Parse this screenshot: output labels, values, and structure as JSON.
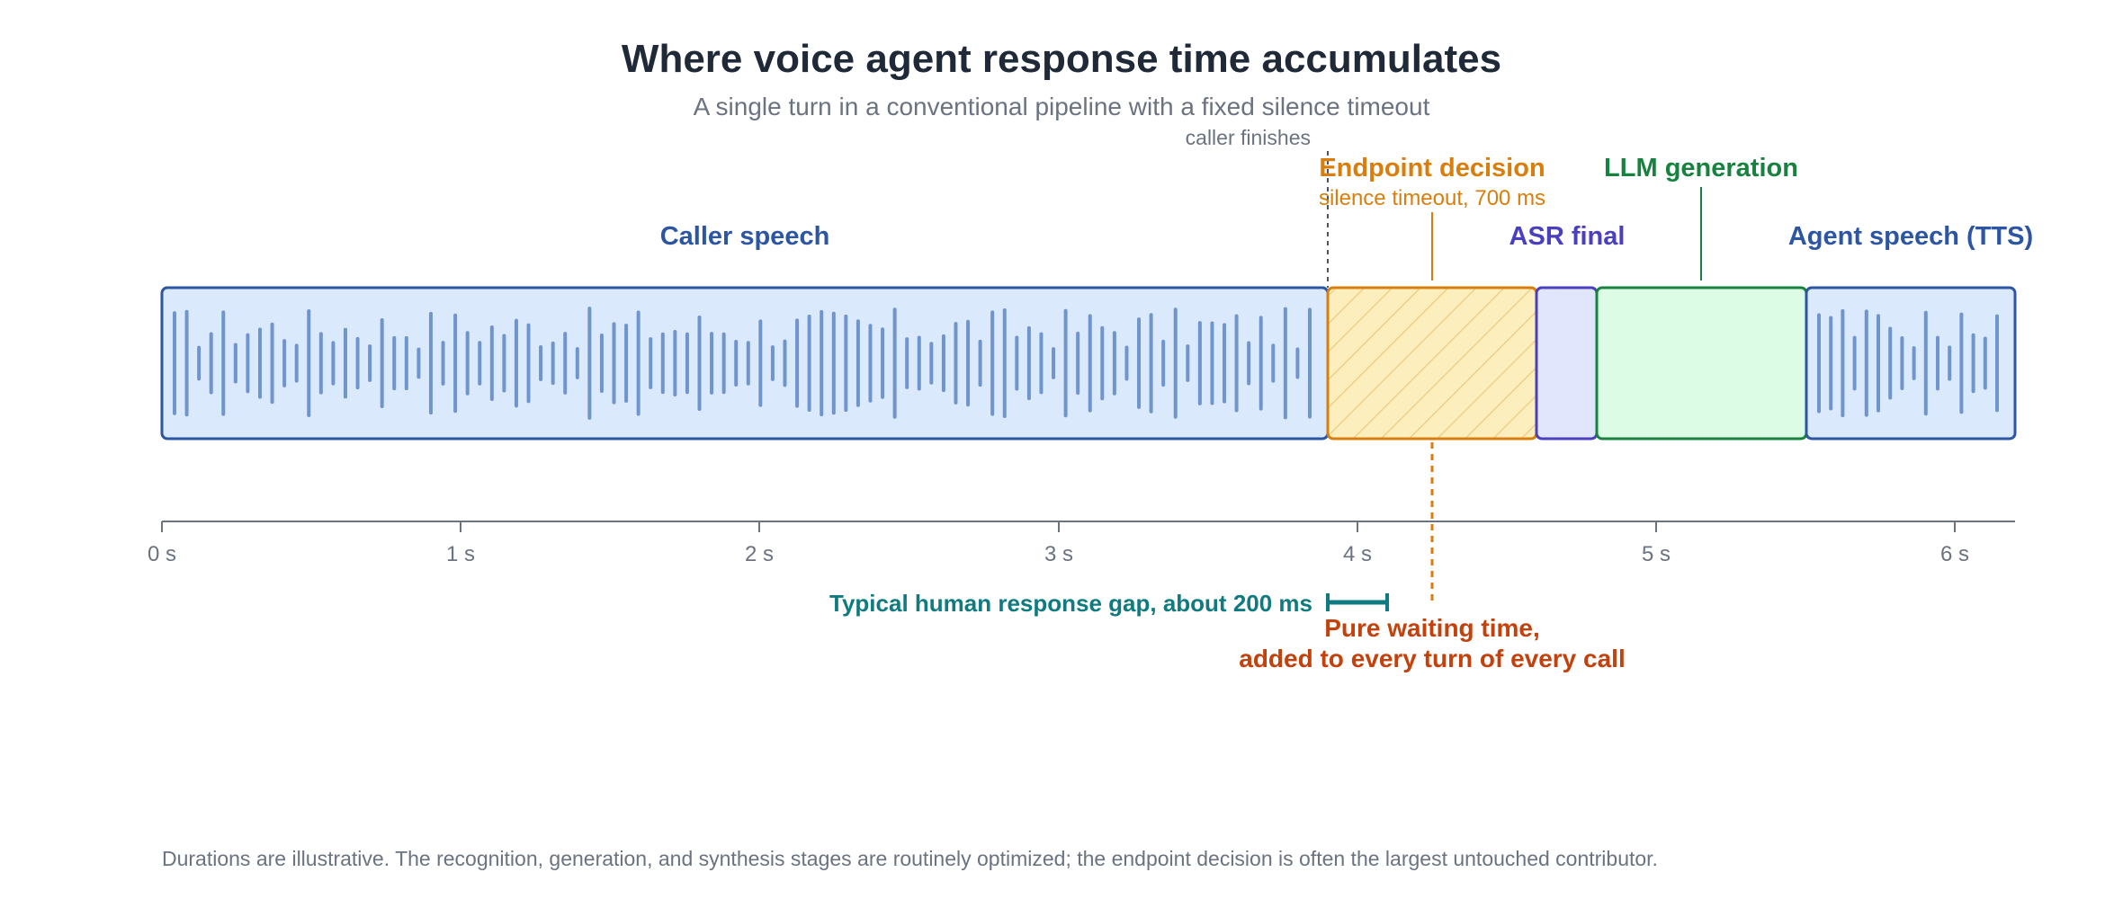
{
  "title": "Where voice agent response time accumulates",
  "subtitle": "A single turn in a conventional pipeline with a fixed silence timeout",
  "caller_finishes_label": "caller finishes",
  "axis": {
    "ticks": [
      {
        "value": 0,
        "label": "0 s"
      },
      {
        "value": 1,
        "label": "1 s"
      },
      {
        "value": 2,
        "label": "2 s"
      },
      {
        "value": 3,
        "label": "3 s"
      },
      {
        "value": 4,
        "label": "4 s"
      },
      {
        "value": 5,
        "label": "5 s"
      },
      {
        "value": 6,
        "label": "6 s"
      }
    ],
    "range": [
      0,
      6.2
    ]
  },
  "segments": [
    {
      "id": "caller-speech",
      "label": "Caller speech",
      "start": 0,
      "end": 3.9,
      "color": "#2c55a3",
      "fill": "#dbe9fc"
    },
    {
      "id": "endpoint-decision",
      "label": "Endpoint decision",
      "sublabel": "silence timeout, 700 ms",
      "start": 3.9,
      "end": 4.6,
      "color": "#d97e0d",
      "fill": "#fdefbd"
    },
    {
      "id": "asr-final",
      "label": "ASR final",
      "start": 4.6,
      "end": 4.8,
      "color": "#4a3fbf",
      "fill": "#e2e6fd"
    },
    {
      "id": "llm-generation",
      "label": "LLM generation",
      "start": 4.8,
      "end": 5.5,
      "color": "#17823f",
      "fill": "#dcfce6"
    },
    {
      "id": "agent-speech",
      "label": "Agent speech (TTS)",
      "start": 5.5,
      "end": 6.2,
      "color": "#2c55a3",
      "fill": "#dbe9fc"
    }
  ],
  "human_gap": {
    "label": "Typical human response gap, about 200 ms",
    "start": 3.9,
    "end": 4.1,
    "color": "#0f7a80"
  },
  "waiting": {
    "line1": "Pure waiting time,",
    "line2": "added to every turn of every call",
    "color": "#c2410c"
  },
  "footnote": "Durations are illustrative. The recognition, generation, and synthesis stages are routinely optimized; the endpoint decision is often the largest untouched contributor."
}
